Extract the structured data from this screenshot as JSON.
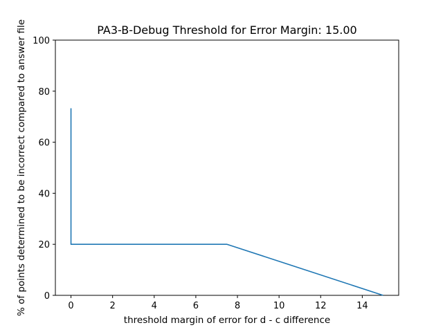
{
  "chart_data": {
    "type": "line",
    "title": "PA3-B-Debug Threshold for Error Margin: 15.00",
    "xlabel": "threshold margin of error for d - c difference",
    "ylabel": "% of points determined to be incorrect compared to answer file",
    "xlim": [
      -0.75,
      15.75
    ],
    "ylim": [
      0,
      100
    ],
    "xticks": [
      0,
      2,
      4,
      6,
      8,
      10,
      12,
      14
    ],
    "yticks": [
      0,
      20,
      40,
      60,
      80,
      100
    ],
    "grid": false,
    "series": [
      {
        "color": "#1f77b4",
        "points": [
          [
            0,
            73.3
          ],
          [
            0,
            20.0
          ],
          [
            7.5,
            20.0
          ],
          [
            15.0,
            0.0
          ]
        ]
      }
    ]
  }
}
